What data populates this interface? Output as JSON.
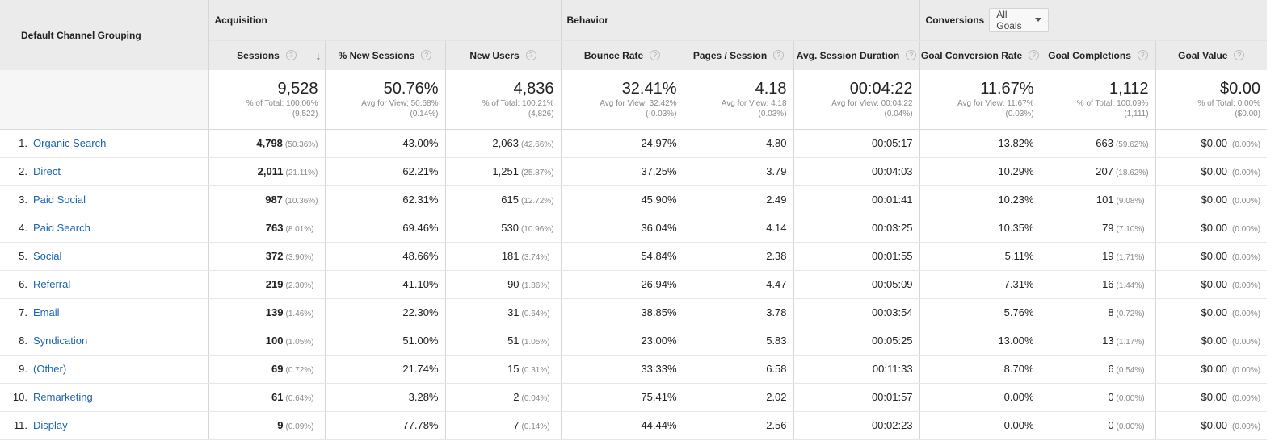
{
  "groups": {
    "dimension": "Default Channel Grouping",
    "acquisition": "Acquisition",
    "behavior": "Behavior",
    "conversions": "Conversions",
    "goal_selector": "All Goals"
  },
  "columns": {
    "sessions": "Sessions",
    "new_sessions": "% New Sessions",
    "new_users": "New Users",
    "bounce_rate": "Bounce Rate",
    "pages_session": "Pages / Session",
    "avg_duration": "Avg. Session Duration",
    "goal_conv_rate": "Goal Conversion Rate",
    "goal_completions": "Goal Completions",
    "goal_value": "Goal Value"
  },
  "totals": {
    "sessions": {
      "value": "9,528",
      "line1": "% of Total: 100.06%",
      "line2": "(9,522)"
    },
    "new_sessions": {
      "value": "50.76%",
      "line1": "Avg for View: 50.68%",
      "line2": "(0.14%)"
    },
    "new_users": {
      "value": "4,836",
      "line1": "% of Total: 100.21%",
      "line2": "(4,826)"
    },
    "bounce_rate": {
      "value": "32.41%",
      "line1": "Avg for View: 32.42%",
      "line2": "(-0.03%)"
    },
    "pages_session": {
      "value": "4.18",
      "line1": "Avg for View: 4.18",
      "line2": "(0.03%)"
    },
    "avg_duration": {
      "value": "00:04:22",
      "line1": "Avg for View: 00:04:22",
      "line2": "(0.04%)"
    },
    "goal_conv_rate": {
      "value": "11.67%",
      "line1": "Avg for View: 11.67%",
      "line2": "(0.03%)"
    },
    "goal_completions": {
      "value": "1,112",
      "line1": "% of Total: 100.09%",
      "line2": "(1,111)"
    },
    "goal_value": {
      "value": "$0.00",
      "line1": "% of Total: 0.00%",
      "line2": "($0.00)"
    }
  },
  "rows": [
    {
      "idx": "1.",
      "channel": "Organic Search",
      "sessions": "4,798",
      "sessions_pct": "(50.36%)",
      "new_sessions": "43.00%",
      "new_users": "2,063",
      "new_users_pct": "(42.66%)",
      "bounce_rate": "24.97%",
      "pages_session": "4.80",
      "avg_duration": "00:05:17",
      "goal_conv_rate": "13.82%",
      "goal_completions": "663",
      "goal_completions_pct": "(59.62%)",
      "goal_value": "$0.00",
      "goal_value_pct": "(0.00%)"
    },
    {
      "idx": "2.",
      "channel": "Direct",
      "sessions": "2,011",
      "sessions_pct": "(21.11%)",
      "new_sessions": "62.21%",
      "new_users": "1,251",
      "new_users_pct": "(25.87%)",
      "bounce_rate": "37.25%",
      "pages_session": "3.79",
      "avg_duration": "00:04:03",
      "goal_conv_rate": "10.29%",
      "goal_completions": "207",
      "goal_completions_pct": "(18.62%)",
      "goal_value": "$0.00",
      "goal_value_pct": "(0.00%)"
    },
    {
      "idx": "3.",
      "channel": "Paid Social",
      "sessions": "987",
      "sessions_pct": "(10.36%)",
      "new_sessions": "62.31%",
      "new_users": "615",
      "new_users_pct": "(12.72%)",
      "bounce_rate": "45.90%",
      "pages_session": "2.49",
      "avg_duration": "00:01:41",
      "goal_conv_rate": "10.23%",
      "goal_completions": "101",
      "goal_completions_pct": "(9.08%)",
      "goal_value": "$0.00",
      "goal_value_pct": "(0.00%)"
    },
    {
      "idx": "4.",
      "channel": "Paid Search",
      "sessions": "763",
      "sessions_pct": "(8.01%)",
      "new_sessions": "69.46%",
      "new_users": "530",
      "new_users_pct": "(10.96%)",
      "bounce_rate": "36.04%",
      "pages_session": "4.14",
      "avg_duration": "00:03:25",
      "goal_conv_rate": "10.35%",
      "goal_completions": "79",
      "goal_completions_pct": "(7.10%)",
      "goal_value": "$0.00",
      "goal_value_pct": "(0.00%)"
    },
    {
      "idx": "5.",
      "channel": "Social",
      "sessions": "372",
      "sessions_pct": "(3.90%)",
      "new_sessions": "48.66%",
      "new_users": "181",
      "new_users_pct": "(3.74%)",
      "bounce_rate": "54.84%",
      "pages_session": "2.38",
      "avg_duration": "00:01:55",
      "goal_conv_rate": "5.11%",
      "goal_completions": "19",
      "goal_completions_pct": "(1.71%)",
      "goal_value": "$0.00",
      "goal_value_pct": "(0.00%)"
    },
    {
      "idx": "6.",
      "channel": "Referral",
      "sessions": "219",
      "sessions_pct": "(2.30%)",
      "new_sessions": "41.10%",
      "new_users": "90",
      "new_users_pct": "(1.86%)",
      "bounce_rate": "26.94%",
      "pages_session": "4.47",
      "avg_duration": "00:05:09",
      "goal_conv_rate": "7.31%",
      "goal_completions": "16",
      "goal_completions_pct": "(1.44%)",
      "goal_value": "$0.00",
      "goal_value_pct": "(0.00%)"
    },
    {
      "idx": "7.",
      "channel": "Email",
      "sessions": "139",
      "sessions_pct": "(1.46%)",
      "new_sessions": "22.30%",
      "new_users": "31",
      "new_users_pct": "(0.64%)",
      "bounce_rate": "38.85%",
      "pages_session": "3.78",
      "avg_duration": "00:03:54",
      "goal_conv_rate": "5.76%",
      "goal_completions": "8",
      "goal_completions_pct": "(0.72%)",
      "goal_value": "$0.00",
      "goal_value_pct": "(0.00%)"
    },
    {
      "idx": "8.",
      "channel": "Syndication",
      "sessions": "100",
      "sessions_pct": "(1.05%)",
      "new_sessions": "51.00%",
      "new_users": "51",
      "new_users_pct": "(1.05%)",
      "bounce_rate": "23.00%",
      "pages_session": "5.83",
      "avg_duration": "00:05:25",
      "goal_conv_rate": "13.00%",
      "goal_completions": "13",
      "goal_completions_pct": "(1.17%)",
      "goal_value": "$0.00",
      "goal_value_pct": "(0.00%)"
    },
    {
      "idx": "9.",
      "channel": "(Other)",
      "sessions": "69",
      "sessions_pct": "(0.72%)",
      "new_sessions": "21.74%",
      "new_users": "15",
      "new_users_pct": "(0.31%)",
      "bounce_rate": "33.33%",
      "pages_session": "6.58",
      "avg_duration": "00:11:33",
      "goal_conv_rate": "8.70%",
      "goal_completions": "6",
      "goal_completions_pct": "(0.54%)",
      "goal_value": "$0.00",
      "goal_value_pct": "(0.00%)"
    },
    {
      "idx": "10.",
      "channel": "Remarketing",
      "sessions": "61",
      "sessions_pct": "(0.64%)",
      "new_sessions": "3.28%",
      "new_users": "2",
      "new_users_pct": "(0.04%)",
      "bounce_rate": "75.41%",
      "pages_session": "2.02",
      "avg_duration": "00:01:57",
      "goal_conv_rate": "0.00%",
      "goal_completions": "0",
      "goal_completions_pct": "(0.00%)",
      "goal_value": "$0.00",
      "goal_value_pct": "(0.00%)"
    },
    {
      "idx": "11.",
      "channel": "Display",
      "sessions": "9",
      "sessions_pct": "(0.09%)",
      "new_sessions": "77.78%",
      "new_users": "7",
      "new_users_pct": "(0.14%)",
      "bounce_rate": "44.44%",
      "pages_session": "2.56",
      "avg_duration": "00:02:23",
      "goal_conv_rate": "0.00%",
      "goal_completions": "0",
      "goal_completions_pct": "(0.00%)",
      "goal_value": "$0.00",
      "goal_value_pct": "(0.00%)"
    }
  ]
}
